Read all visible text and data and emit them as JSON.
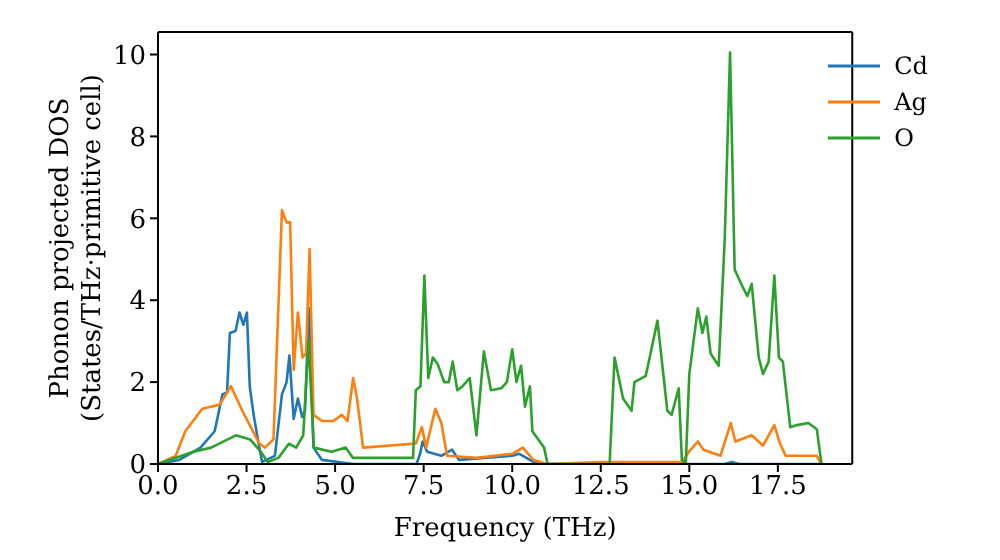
{
  "chart_data": {
    "type": "line",
    "xlabel": "Frequency (THz)",
    "ylabel": "Phonon projected DOS\n(States/THz·primitive cell)",
    "xlim": [
      0,
      19.6
    ],
    "ylim": [
      0,
      10.55
    ],
    "xticks": [
      {
        "value": 0,
        "label": "0.0"
      },
      {
        "value": 2.5,
        "label": "2.5"
      },
      {
        "value": 5,
        "label": "5.0"
      },
      {
        "value": 7.5,
        "label": "7.5"
      },
      {
        "value": 10,
        "label": "10.0"
      },
      {
        "value": 12.5,
        "label": "12.5"
      },
      {
        "value": 15,
        "label": "15.0"
      },
      {
        "value": 17.5,
        "label": "17.5"
      }
    ],
    "yticks": [
      0,
      2,
      4,
      6,
      8,
      10
    ],
    "legend": "top right",
    "grid": false,
    "marker": "none",
    "line_style": "solid",
    "series": [
      {
        "name": "Cd",
        "color": "#1f77b4",
        "x": [
          0,
          0.6,
          1.2,
          1.6,
          1.82,
          1.95,
          2.03,
          2.19,
          2.3,
          2.41,
          2.51,
          2.59,
          2.7,
          2.86,
          2.94,
          3.3,
          3.5,
          3.63,
          3.71,
          3.83,
          3.95,
          4.07,
          4.15,
          4.26,
          4.39,
          4.63,
          5.5,
          7.3,
          7.4,
          7.47,
          7.6,
          8.0,
          8.3,
          8.5,
          9.2,
          10.0,
          10.2,
          10.6,
          10.8,
          16.0,
          16.2,
          16.4,
          18.7
        ],
        "values": [
          0,
          0.1,
          0.4,
          0.8,
          1.7,
          1.75,
          3.2,
          3.25,
          3.7,
          3.4,
          3.7,
          1.9,
          1.2,
          0.4,
          0.05,
          0.2,
          1.7,
          2.0,
          2.65,
          1.1,
          1.6,
          1.15,
          1.3,
          3.8,
          0.4,
          0.1,
          0,
          0,
          0.25,
          0.55,
          0.3,
          0.2,
          0.35,
          0.1,
          0.15,
          0.2,
          0.25,
          0.05,
          0,
          0,
          0.05,
          0,
          0
        ]
      },
      {
        "name": "Ag",
        "color": "#ff7f0e",
        "x": [
          0,
          0.5,
          0.77,
          1.25,
          1.74,
          2.06,
          2.38,
          2.86,
          3.02,
          3.26,
          3.5,
          3.63,
          3.73,
          3.83,
          3.95,
          4.08,
          4.18,
          4.28,
          4.39,
          4.63,
          4.95,
          5.19,
          5.35,
          5.51,
          5.62,
          5.79,
          7.28,
          7.45,
          7.57,
          7.83,
          8.0,
          8.16,
          9.0,
          10.0,
          10.3,
          10.6,
          11.0,
          12.5,
          14.8,
          14.99,
          15.24,
          15.4,
          15.88,
          16.17,
          16.3,
          16.76,
          17.08,
          17.4,
          17.56,
          17.72,
          18.6,
          18.72
        ],
        "values": [
          0,
          0.2,
          0.8,
          1.35,
          1.45,
          1.9,
          1.3,
          0.5,
          0.4,
          0.6,
          6.2,
          5.9,
          5.9,
          2.3,
          3.7,
          2.6,
          2.7,
          5.25,
          1.2,
          1.05,
          1.05,
          1.2,
          1.05,
          2.1,
          1.6,
          0.4,
          0.5,
          0.9,
          0.4,
          1.35,
          1.0,
          0.2,
          0.15,
          0.25,
          0.4,
          0.1,
          0,
          0.05,
          0.05,
          0.3,
          0.55,
          0.35,
          0.2,
          1.0,
          0.55,
          0.7,
          0.45,
          0.95,
          0.5,
          0.2,
          0.2,
          0
        ]
      },
      {
        "name": "O",
        "color": "#2ca02c",
        "x": [
          0,
          1.0,
          1.5,
          2.2,
          2.6,
          2.9,
          3.1,
          3.4,
          3.7,
          3.9,
          4.1,
          4.25,
          4.4,
          4.9,
          5.3,
          5.5,
          7.0,
          7.2,
          7.28,
          7.41,
          7.52,
          7.63,
          7.76,
          7.89,
          8.08,
          8.21,
          8.32,
          8.45,
          8.6,
          8.8,
          8.99,
          9.2,
          9.4,
          9.69,
          9.85,
          10.0,
          10.12,
          10.25,
          10.36,
          10.5,
          10.57,
          10.9,
          11.0,
          12.75,
          12.89,
          13.13,
          13.37,
          13.45,
          13.77,
          14.1,
          14.38,
          14.5,
          14.7,
          14.79,
          14.9,
          15.0,
          15.24,
          15.37,
          15.48,
          15.6,
          15.83,
          16.0,
          16.15,
          16.28,
          16.52,
          16.64,
          16.76,
          16.96,
          17.08,
          17.24,
          17.4,
          17.53,
          17.64,
          17.85,
          18.04,
          18.36,
          18.6,
          18.73
        ],
        "values": [
          0,
          0.3,
          0.4,
          0.7,
          0.6,
          0.3,
          0.05,
          0.15,
          0.5,
          0.4,
          0.7,
          3.0,
          0.4,
          0.3,
          0.4,
          0.15,
          0.15,
          0.15,
          1.8,
          1.9,
          4.6,
          2.1,
          2.6,
          2.45,
          2.0,
          2.0,
          2.5,
          1.8,
          1.9,
          2.1,
          0.7,
          2.75,
          1.8,
          1.85,
          2.0,
          2.8,
          2.0,
          2.4,
          1.4,
          1.9,
          0.8,
          0.4,
          0,
          0,
          2.6,
          1.6,
          1.3,
          2.0,
          2.15,
          3.5,
          1.3,
          1.2,
          1.85,
          0.1,
          0,
          2.2,
          3.8,
          3.2,
          3.6,
          2.7,
          2.4,
          5.5,
          10.05,
          4.75,
          4.3,
          4.1,
          4.4,
          2.6,
          2.2,
          2.5,
          4.6,
          2.6,
          2.5,
          0.9,
          0.95,
          1.0,
          0.85,
          0
        ]
      }
    ]
  }
}
